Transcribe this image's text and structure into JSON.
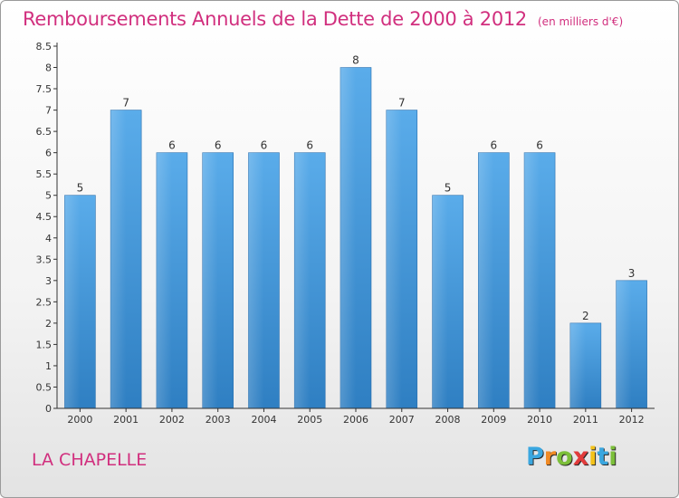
{
  "title": "Remboursements Annuels de la Dette de 2000 à 2012",
  "unit": "(en milliers d'€)",
  "commune": "LA CHAPELLE",
  "logo": {
    "letters": [
      "P",
      "r",
      "o",
      "x",
      "i",
      "t",
      "i"
    ],
    "colors": [
      "#3aa7e0",
      "#f08a24",
      "#7cbf3a",
      "#e23b3b",
      "#f3c21a",
      "#3aa7e0",
      "#7cbf3a"
    ]
  },
  "colors": {
    "bar": "#4fa3e3",
    "accent": "#d12f7e"
  },
  "chart_data": {
    "type": "bar",
    "categories": [
      "2000",
      "2001",
      "2002",
      "2003",
      "2004",
      "2005",
      "2006",
      "2007",
      "2008",
      "2009",
      "2010",
      "2011",
      "2012"
    ],
    "values": [
      5,
      7,
      6,
      6,
      6,
      6,
      8,
      7,
      5,
      6,
      6,
      2,
      3
    ],
    "data_labels": [
      "5",
      "7",
      "6",
      "6",
      "6",
      "6",
      "8",
      "7",
      "5",
      "6",
      "6",
      "2",
      "3"
    ],
    "yticks": [
      "0",
      "0.5",
      "1",
      "1.5",
      "2",
      "2.5",
      "3",
      "3.5",
      "4",
      "4.5",
      "5",
      "5.5",
      "6",
      "6.5",
      "7",
      "7.5",
      "8",
      "8.5"
    ],
    "ylim": [
      0,
      8.5
    ],
    "grid": false
  }
}
